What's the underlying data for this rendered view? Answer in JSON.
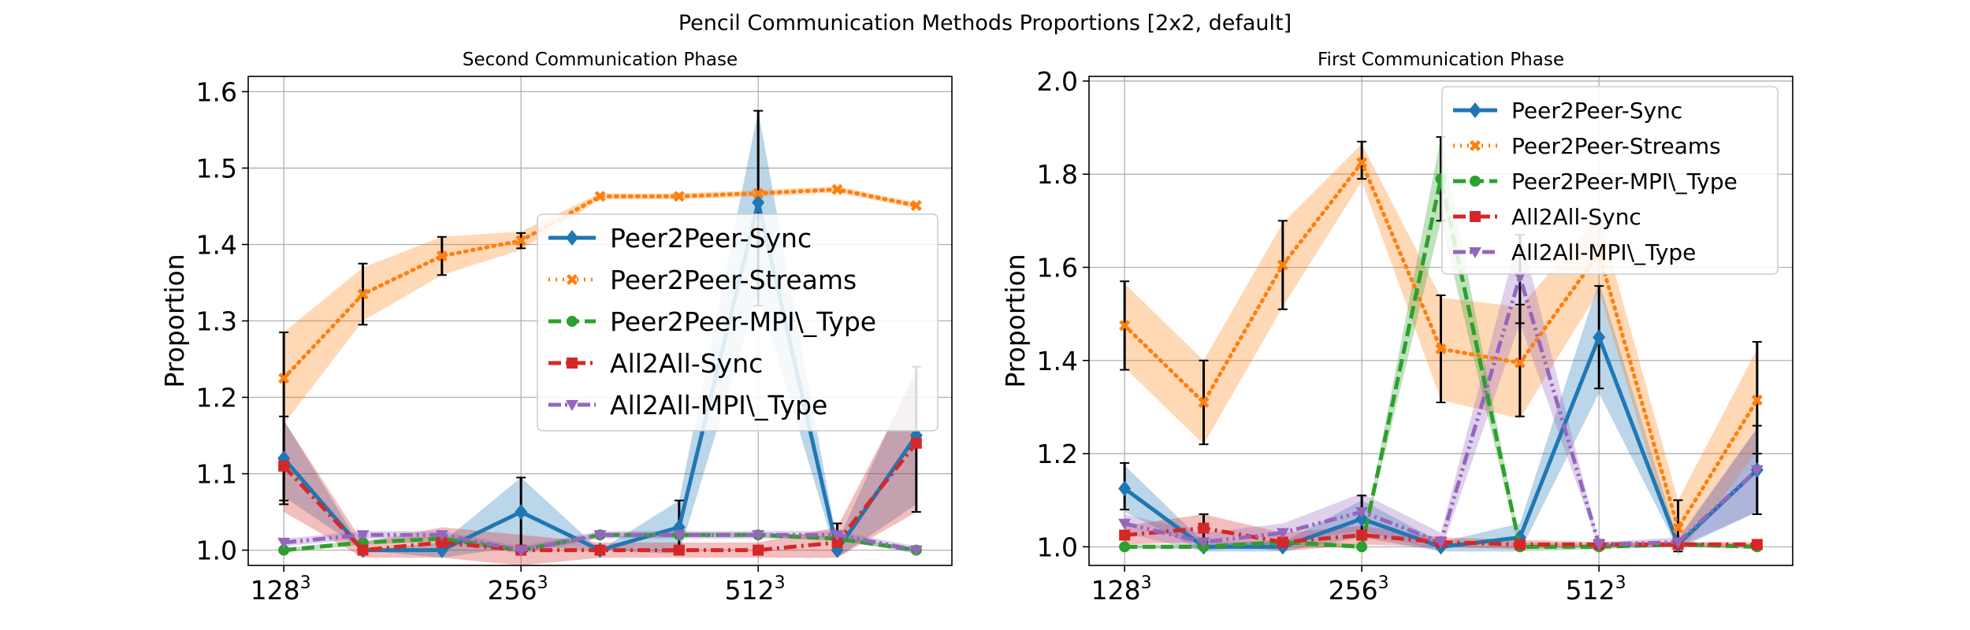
{
  "figure_title": "Pencil Communication Methods Proportions [2x2, default]",
  "colors": {
    "Peer2Peer-Sync": "#1f77b4",
    "Peer2Peer-Streams": "#ff7f0e",
    "Peer2Peer-MPI\\_Type": "#2ca02c",
    "All2All-Sync": "#d62728",
    "All2All-MPI\\_Type": "#9467bd",
    "errorbar": "#000000",
    "grid": "#b0b0b0"
  },
  "chart_data": [
    {
      "type": "line",
      "title": "Second Communication Phase",
      "xlabel": "",
      "ylabel": "Proportion",
      "x": [
        1,
        2,
        3,
        4,
        5,
        6,
        7,
        8,
        9
      ],
      "xtick_positions": [
        1,
        4,
        7
      ],
      "xtick_labels": [
        {
          "base": "128",
          "exp": "3"
        },
        {
          "base": "256",
          "exp": "3"
        },
        {
          "base": "512",
          "exp": "3"
        }
      ],
      "xlim": [
        0.55,
        9.45
      ],
      "ylim": [
        0.98,
        1.62
      ],
      "yticks": [
        1.0,
        1.1,
        1.2,
        1.3,
        1.4,
        1.5,
        1.6
      ],
      "ytick_labels": [
        "1.0",
        "1.1",
        "1.2",
        "1.3",
        "1.4",
        "1.5",
        "1.6"
      ],
      "grid": true,
      "legend": "center-right",
      "series": [
        {
          "name": "Peer2Peer-Sync",
          "style": "solid",
          "marker": "diamond",
          "values": [
            1.12,
            1.0,
            1.0,
            1.05,
            1.0,
            1.03,
            1.455,
            1.0,
            1.15
          ],
          "band": [
            0.05,
            0.0,
            0.01,
            0.045,
            0.0,
            0.035,
            0.12,
            0.01,
            0.09
          ]
        },
        {
          "name": "Peer2Peer-Streams",
          "style": "dotted",
          "marker": "x",
          "values": [
            1.225,
            1.335,
            1.385,
            1.405,
            1.463,
            1.463,
            1.467,
            1.472,
            1.451
          ],
          "band": [
            0.06,
            0.035,
            0.025,
            0.012,
            0.004,
            0.004,
            0.004,
            0.004,
            0.004
          ]
        },
        {
          "name": "Peer2Peer-MPI\\_Type",
          "style": "dashed",
          "marker": "circle",
          "values": [
            1.0,
            1.01,
            1.015,
            1.0,
            1.02,
            1.02,
            1.02,
            1.015,
            1.0
          ],
          "band": [
            0.003,
            0.003,
            0.003,
            0.003,
            0.003,
            0.003,
            0.003,
            0.003,
            0.003
          ]
        },
        {
          "name": "All2All-Sync",
          "style": "dashdot",
          "marker": "square",
          "values": [
            1.11,
            1.0,
            1.01,
            1.0,
            1.0,
            1.0,
            1.0,
            1.01,
            1.14
          ],
          "band": [
            0.06,
            0.01,
            0.02,
            0.02,
            0.01,
            0.01,
            0.01,
            0.02,
            0.09
          ]
        },
        {
          "name": "All2All-MPI\\_Type",
          "style": "dashdotdot",
          "marker": "triangle-down",
          "values": [
            1.01,
            1.02,
            1.02,
            1.0,
            1.02,
            1.02,
            1.02,
            1.02,
            1.0
          ],
          "band": [
            0.005,
            0.005,
            0.005,
            0.005,
            0.005,
            0.005,
            0.005,
            0.005,
            0.005
          ]
        }
      ],
      "errorbars": [
        {
          "x": 1,
          "low": 1.06,
          "high": 1.285
        },
        {
          "x": 1,
          "low": 1.065,
          "high": 1.175
        },
        {
          "x": 2,
          "low": 1.295,
          "high": 1.375
        },
        {
          "x": 3,
          "low": 1.36,
          "high": 1.41
        },
        {
          "x": 4,
          "low": 0.995,
          "high": 1.095
        },
        {
          "x": 4,
          "low": 1.395,
          "high": 1.415
        },
        {
          "x": 6,
          "low": 1.0,
          "high": 1.065
        },
        {
          "x": 7,
          "low": 1.32,
          "high": 1.575
        },
        {
          "x": 8,
          "low": 1.0,
          "high": 1.035
        },
        {
          "x": 9,
          "low": 1.05,
          "high": 1.24
        }
      ]
    },
    {
      "type": "line",
      "title": "First Communication Phase",
      "xlabel": "",
      "ylabel": "Proportion",
      "x": [
        1,
        2,
        3,
        4,
        5,
        6,
        7,
        8,
        9
      ],
      "xtick_positions": [
        1,
        4,
        7
      ],
      "xtick_labels": [
        {
          "base": "128",
          "exp": "3"
        },
        {
          "base": "256",
          "exp": "3"
        },
        {
          "base": "512",
          "exp": "3"
        }
      ],
      "xlim": [
        0.55,
        9.45
      ],
      "ylim": [
        0.96,
        2.01
      ],
      "yticks": [
        1.0,
        1.2,
        1.4,
        1.6,
        1.8,
        2.0
      ],
      "ytick_labels": [
        "1.0",
        "1.2",
        "1.4",
        "1.6",
        "1.8",
        "2.0"
      ],
      "grid": true,
      "legend": "top-right",
      "series": [
        {
          "name": "Peer2Peer-Sync",
          "style": "solid",
          "marker": "diamond",
          "values": [
            1.125,
            1.0,
            1.0,
            1.06,
            1.0,
            1.02,
            1.45,
            1.005,
            1.165
          ],
          "band": [
            0.05,
            0.01,
            0.01,
            0.04,
            0.01,
            0.03,
            0.12,
            0.01,
            0.09
          ]
        },
        {
          "name": "Peer2Peer-Streams",
          "style": "dotted",
          "marker": "x",
          "values": [
            1.475,
            1.31,
            1.605,
            1.825,
            1.425,
            1.395,
            1.63,
            1.04,
            1.315
          ],
          "band": [
            0.09,
            0.09,
            0.09,
            0.04,
            0.11,
            0.12,
            0.08,
            0.06,
            0.11
          ]
        },
        {
          "name": "Peer2Peer-MPI\\_Type",
          "style": "dashed",
          "marker": "circle",
          "values": [
            1.0,
            1.0,
            1.01,
            1.0,
            1.79,
            1.0,
            1.0,
            1.005,
            1.0
          ],
          "band": [
            0.005,
            0.005,
            0.005,
            0.005,
            0.09,
            0.01,
            0.005,
            0.005,
            0.005
          ]
        },
        {
          "name": "All2All-Sync",
          "style": "dashdot",
          "marker": "square",
          "values": [
            1.025,
            1.04,
            1.01,
            1.025,
            1.01,
            1.005,
            1.005,
            1.005,
            1.005
          ],
          "band": [
            0.02,
            0.03,
            0.02,
            0.02,
            0.01,
            0.01,
            0.005,
            0.005,
            0.005
          ]
        },
        {
          "name": "All2All-MPI\\_Type",
          "style": "dashdotdot",
          "marker": "triangle-down",
          "values": [
            1.05,
            1.01,
            1.03,
            1.075,
            1.01,
            1.58,
            1.005,
            1.01,
            1.165
          ],
          "band": [
            0.02,
            0.02,
            0.02,
            0.04,
            0.02,
            0.1,
            0.005,
            0.01,
            0.09
          ]
        }
      ],
      "errorbars": [
        {
          "x": 1,
          "low": 1.38,
          "high": 1.57
        },
        {
          "x": 1,
          "low": 1.08,
          "high": 1.18
        },
        {
          "x": 2,
          "low": 1.22,
          "high": 1.4
        },
        {
          "x": 2,
          "low": 1.01,
          "high": 1.07
        },
        {
          "x": 3,
          "low": 1.51,
          "high": 1.7
        },
        {
          "x": 4,
          "low": 1.79,
          "high": 1.87
        },
        {
          "x": 4,
          "low": 1.02,
          "high": 1.11
        },
        {
          "x": 5,
          "low": 1.31,
          "high": 1.54
        },
        {
          "x": 5,
          "low": 1.7,
          "high": 1.88
        },
        {
          "x": 6,
          "low": 1.28,
          "high": 1.52
        },
        {
          "x": 6,
          "low": 1.48,
          "high": 1.67
        },
        {
          "x": 7,
          "low": 1.34,
          "high": 1.56
        },
        {
          "x": 8,
          "low": 0.99,
          "high": 1.1
        },
        {
          "x": 9,
          "low": 1.2,
          "high": 1.44
        },
        {
          "x": 9,
          "low": 1.07,
          "high": 1.26
        }
      ]
    }
  ]
}
